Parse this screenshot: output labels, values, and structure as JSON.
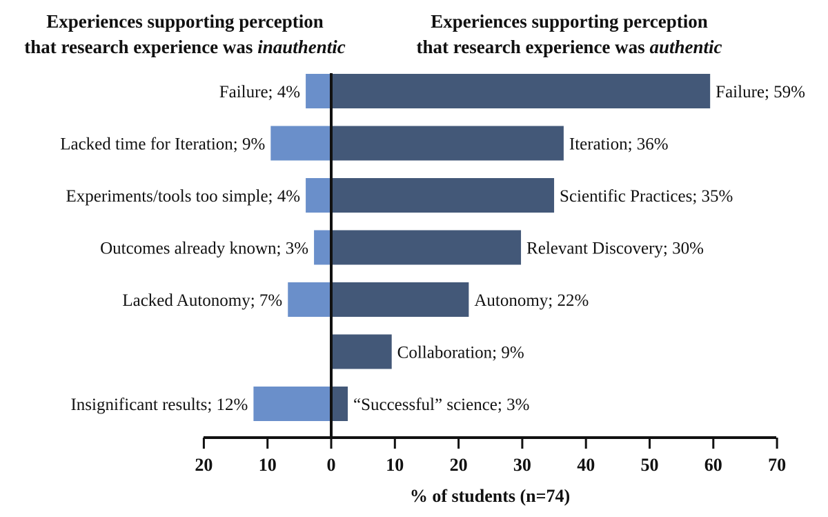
{
  "chart_data": {
    "type": "bar",
    "orientation": "horizontal-diverging",
    "left_title": {
      "line1": "Experiences supporting perception",
      "line2_prefix": "that research experience was ",
      "line2_emphasis": "inauthentic"
    },
    "right_title": {
      "line1": "Experiences supporting perception",
      "line2_prefix": "that research experience was ",
      "line2_emphasis": "authentic"
    },
    "xlabel": "% of students (n=74)",
    "xlim": [
      -20,
      70
    ],
    "ticks": [
      -20,
      -10,
      0,
      10,
      20,
      30,
      40,
      50,
      60,
      70
    ],
    "tick_labels": [
      "20",
      "10",
      "0",
      "10",
      "20",
      "30",
      "40",
      "50",
      "60",
      "70"
    ],
    "series": [
      {
        "name": "inauthentic",
        "color": "#6a8fca",
        "labels": [
          "Failure; 4%",
          "Lacked time for Iteration; 9%",
          "Experiments/tools too simple; 4%",
          "Outcomes already known; 3%",
          "Lacked Autonomy; 7%",
          "",
          "Insignificant results; 12%"
        ],
        "values": [
          4,
          9.5,
          4,
          2.7,
          6.8,
          0,
          12.2
        ]
      },
      {
        "name": "authentic",
        "color": "#435878",
        "labels": [
          "Failure; 59%",
          "Iteration; 36%",
          "Scientific Practices; 35%",
          "Relevant Discovery; 30%",
          "Autonomy; 22%",
          "Collaboration; 9%",
          "“Successful” science; 3%"
        ],
        "values": [
          59.5,
          36.5,
          35,
          29.8,
          21.6,
          9.5,
          2.6
        ]
      }
    ]
  }
}
